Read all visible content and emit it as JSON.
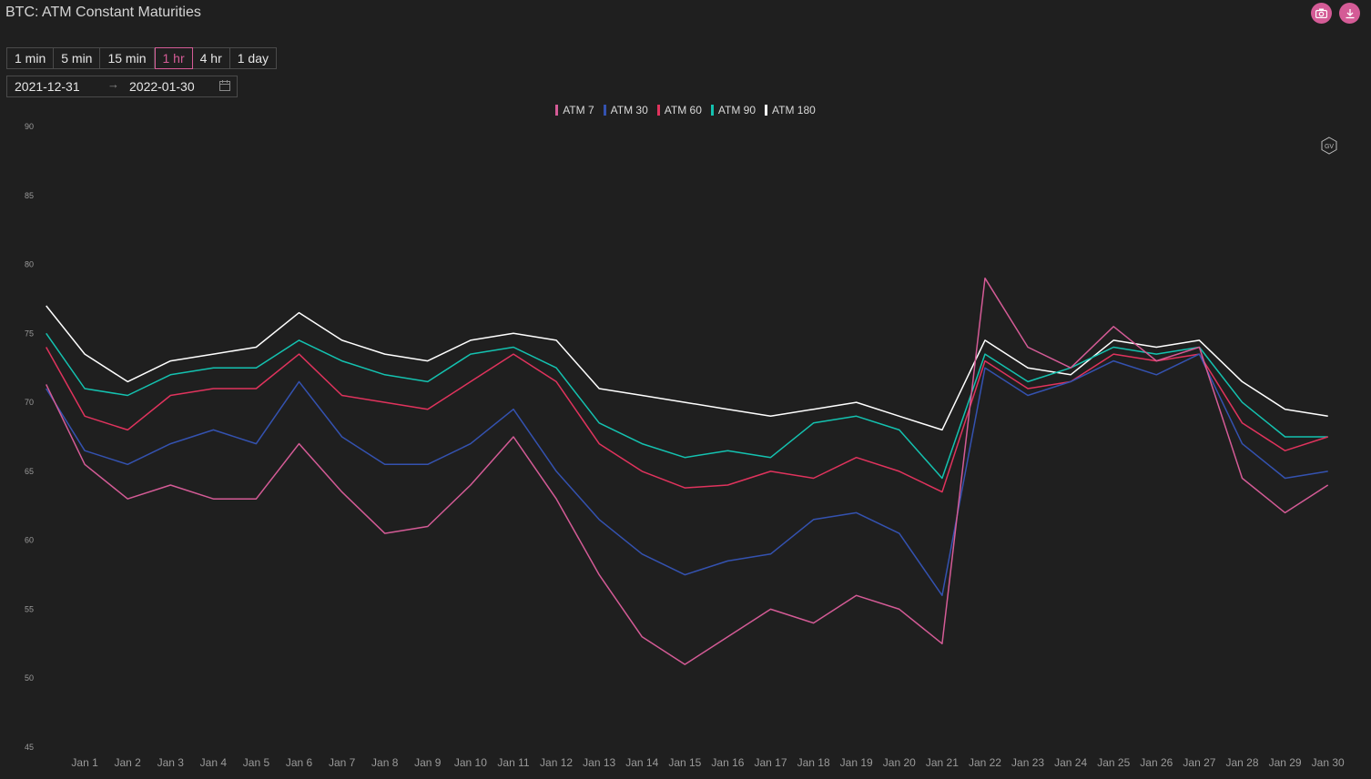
{
  "title": "BTC: ATM Constant Maturities",
  "actions": [
    {
      "icon": "camera-icon"
    },
    {
      "icon": "download-icon"
    }
  ],
  "intervals": [
    "1 min",
    "5 min",
    "15 min",
    "1 hr",
    "4 hr",
    "1 day"
  ],
  "active_interval": "1 hr",
  "date_range": {
    "start": "2021-12-31",
    "end": "2022-01-30",
    "separator_icon": "arrow-right-icon",
    "calendar_icon": "calendar-icon"
  },
  "watermark_icon": "gv-logo-icon",
  "colors": {
    "background": "#1f1f1f",
    "accent": "#d45b96",
    "ATM 7": "#d45b96",
    "ATM 30": "#3452b0",
    "ATM 60": "#e0335d",
    "ATM 90": "#14c2b0",
    "ATM 180": "#ffffff"
  },
  "chart_data": {
    "type": "line",
    "title": "",
    "xlabel": "",
    "ylabel": "",
    "ylim": [
      45,
      90
    ],
    "yticks": [
      45,
      50,
      55,
      60,
      65,
      70,
      75,
      80,
      85,
      90
    ],
    "x_start": "2021-12-31",
    "x_end": "2022-01-30",
    "xtick_labels": [
      "Jan 1",
      "Jan 2",
      "Jan 3",
      "Jan 4",
      "Jan 5",
      "Jan 6",
      "Jan 7",
      "Jan 8",
      "Jan 9",
      "Jan 10",
      "Jan 11",
      "Jan 12",
      "Jan 13",
      "Jan 14",
      "Jan 15",
      "Jan 16",
      "Jan 17",
      "Jan 18",
      "Jan 19",
      "Jan 20",
      "Jan 21",
      "Jan 22",
      "Jan 23",
      "Jan 24",
      "Jan 25",
      "Jan 26",
      "Jan 27",
      "Jan 28",
      "Jan 29",
      "Jan 30"
    ],
    "legend_position": "top-center",
    "grid": false,
    "x": [
      "2021-12-31",
      "2022-01-01",
      "2022-01-02",
      "2022-01-03",
      "2022-01-04",
      "2022-01-05",
      "2022-01-06",
      "2022-01-07",
      "2022-01-08",
      "2022-01-09",
      "2022-01-10",
      "2022-01-11",
      "2022-01-12",
      "2022-01-13",
      "2022-01-14",
      "2022-01-15",
      "2022-01-16",
      "2022-01-17",
      "2022-01-18",
      "2022-01-19",
      "2022-01-20",
      "2022-01-21",
      "2022-01-22",
      "2022-01-23",
      "2022-01-24",
      "2022-01-25",
      "2022-01-26",
      "2022-01-27",
      "2022-01-28",
      "2022-01-29",
      "2022-01-30"
    ],
    "series": [
      {
        "name": "ATM 7",
        "values": [
          71.3,
          65.5,
          63.0,
          64.0,
          63.0,
          63.0,
          67.0,
          63.5,
          60.5,
          61.0,
          64.0,
          67.5,
          63.0,
          57.5,
          53.0,
          51.0,
          53.0,
          55.0,
          54.0,
          56.0,
          55.0,
          52.5,
          79.0,
          74.0,
          72.5,
          75.5,
          73.0,
          74.0,
          64.5,
          62.0,
          64.0
        ]
      },
      {
        "name": "ATM 30",
        "values": [
          71.0,
          66.5,
          65.5,
          67.0,
          68.0,
          67.0,
          71.5,
          67.5,
          65.5,
          65.5,
          67.0,
          69.5,
          65.0,
          61.5,
          59.0,
          57.5,
          58.5,
          59.0,
          61.5,
          62.0,
          60.5,
          56.0,
          72.5,
          70.5,
          71.5,
          73.0,
          72.0,
          73.5,
          67.0,
          64.5,
          65.0
        ]
      },
      {
        "name": "ATM 60",
        "values": [
          74.0,
          69.0,
          68.0,
          70.5,
          71.0,
          71.0,
          73.5,
          70.5,
          70.0,
          69.5,
          71.5,
          73.5,
          71.5,
          67.0,
          65.0,
          63.8,
          64.0,
          65.0,
          64.5,
          66.0,
          65.0,
          63.5,
          73.0,
          71.0,
          71.5,
          73.5,
          73.0,
          73.5,
          68.5,
          66.5,
          67.5
        ]
      },
      {
        "name": "ATM 90",
        "values": [
          75.0,
          71.0,
          70.5,
          72.0,
          72.5,
          72.5,
          74.5,
          73.0,
          72.0,
          71.5,
          73.5,
          74.0,
          72.5,
          68.5,
          67.0,
          66.0,
          66.5,
          66.0,
          68.5,
          69.0,
          68.0,
          64.5,
          73.5,
          71.5,
          72.5,
          74.0,
          73.5,
          74.0,
          70.0,
          67.5,
          67.5
        ]
      },
      {
        "name": "ATM 180",
        "values": [
          77.0,
          73.5,
          71.5,
          73.0,
          73.5,
          74.0,
          76.5,
          74.5,
          73.5,
          73.0,
          74.5,
          75.0,
          74.5,
          71.0,
          70.5,
          70.0,
          69.5,
          69.0,
          69.5,
          70.0,
          69.0,
          68.0,
          74.5,
          72.5,
          72.0,
          74.5,
          74.0,
          74.5,
          71.5,
          69.5,
          69.0
        ]
      }
    ]
  }
}
